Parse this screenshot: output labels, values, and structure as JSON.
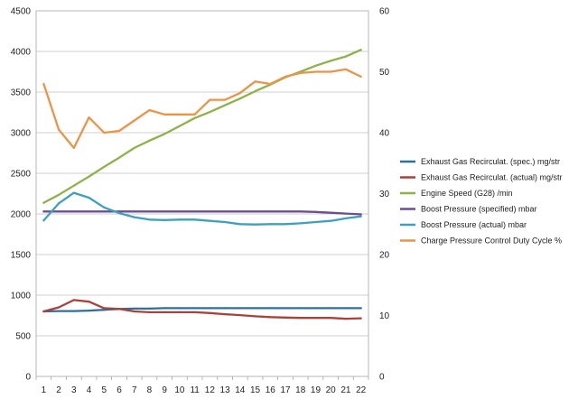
{
  "chart_data": {
    "type": "line",
    "title": "",
    "xlabel": "",
    "ylabel": "",
    "y2label": "",
    "x": [
      1,
      2,
      3,
      4,
      5,
      6,
      7,
      8,
      9,
      10,
      11,
      12,
      13,
      14,
      15,
      16,
      17,
      18,
      19,
      20,
      21,
      22
    ],
    "ylim": [
      0,
      4500
    ],
    "yticks": [
      0,
      500,
      1000,
      1500,
      2000,
      2500,
      3000,
      3500,
      4000,
      4500
    ],
    "y2lim": [
      0,
      60
    ],
    "y2ticks": [
      0,
      10,
      20,
      30,
      40,
      50,
      60
    ],
    "grid": "horizontal",
    "legend_position": "right",
    "series": [
      {
        "name": "Exhaust Gas Recirculat. (spec.)  mg/str",
        "axis": "left",
        "color": "#2e6f9e",
        "values": [
          800,
          805,
          805,
          810,
          820,
          830,
          835,
          835,
          840,
          840,
          840,
          840,
          840,
          840,
          840,
          840,
          840,
          840,
          840,
          840,
          840,
          840
        ]
      },
      {
        "name": "Exhaust Gas Recirculat. (actual)  mg/str",
        "axis": "left",
        "color": "#a8433b",
        "values": [
          800,
          850,
          940,
          920,
          840,
          830,
          800,
          790,
          790,
          790,
          790,
          780,
          765,
          755,
          740,
          730,
          725,
          720,
          720,
          720,
          710,
          715
        ]
      },
      {
        "name": "Engine Speed (G28)  /min",
        "axis": "right",
        "color": "#8eb24a",
        "values": [
          28.5,
          29.8,
          31.3,
          32.8,
          34.4,
          35.9,
          37.5,
          38.7,
          39.8,
          41.1,
          42.4,
          43.4,
          44.5,
          45.6,
          46.8,
          47.9,
          49.1,
          50.0,
          51.0,
          51.8,
          52.5,
          53.6
        ]
      },
      {
        "name": "Boost Pressure (specified)  mbar",
        "axis": "left",
        "color": "#6b4f8e",
        "values": [
          2030,
          2030,
          2030,
          2030,
          2030,
          2030,
          2030,
          2030,
          2030,
          2030,
          2030,
          2030,
          2030,
          2030,
          2030,
          2030,
          2030,
          2030,
          2025,
          2015,
          2005,
          1995
        ]
      },
      {
        "name": "Boost Pressure (actual)  mbar",
        "axis": "left",
        "color": "#3fa0bd",
        "values": [
          1920,
          2130,
          2260,
          2200,
          2080,
          2010,
          1960,
          1930,
          1925,
          1930,
          1930,
          1915,
          1900,
          1875,
          1870,
          1875,
          1875,
          1885,
          1900,
          1915,
          1945,
          1970
        ]
      },
      {
        "name": "Charge Pressure Control Duty Cycle  %",
        "axis": "right",
        "color": "#e8954a",
        "values": [
          48.0,
          40.5,
          37.5,
          42.5,
          40.0,
          40.3,
          42.0,
          43.7,
          43.0,
          43.0,
          43.0,
          45.4,
          45.4,
          46.5,
          48.4,
          48.0,
          49.2,
          49.8,
          50.0,
          50.0,
          50.4,
          49.2
        ]
      }
    ]
  }
}
